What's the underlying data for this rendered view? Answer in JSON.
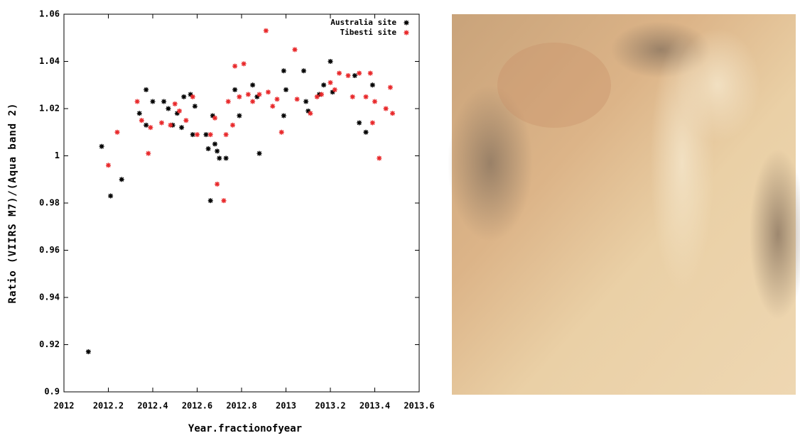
{
  "chart_data": {
    "type": "scatter",
    "xlabel": "Year.fractionofyear",
    "ylabel": "Ratio (VIIRS M7)/(Aqua band 2)",
    "xlim": [
      2012,
      2013.6
    ],
    "xticks": [
      2012,
      2012.2,
      2012.4,
      2012.6,
      2012.8,
      2013,
      2013.2,
      2013.4,
      2013.6
    ],
    "ylim": [
      0.9,
      1.06
    ],
    "yticks": [
      0.9,
      0.92,
      0.94,
      0.96,
      0.98,
      1,
      1.02,
      1.04,
      1.06
    ],
    "grid": false,
    "legend": "upper right",
    "series": [
      {
        "name": "Australia site",
        "color": "#000000",
        "x": [
          2012.11,
          2012.17,
          2012.21,
          2012.26,
          2012.34,
          2012.37,
          2012.37,
          2012.4,
          2012.45,
          2012.47,
          2012.49,
          2012.51,
          2012.53,
          2012.54,
          2012.57,
          2012.59,
          2012.58,
          2012.64,
          2012.65,
          2012.66,
          2012.67,
          2012.68,
          2012.69,
          2012.7,
          2012.73,
          2012.77,
          2012.79,
          2012.85,
          2012.87,
          2012.88,
          2012.99,
          2013.0,
          2012.99,
          2013.08,
          2013.09,
          2013.1,
          2013.2,
          2013.21,
          2013.17,
          2013.31,
          2013.33,
          2013.36,
          2013.39,
          2013.15
        ],
        "values": [
          0.917,
          1.004,
          0.983,
          0.99,
          1.018,
          1.028,
          1.013,
          1.023,
          1.023,
          1.02,
          1.013,
          1.018,
          1.012,
          1.025,
          1.026,
          1.021,
          1.009,
          1.009,
          1.003,
          0.981,
          1.017,
          1.005,
          1.002,
          0.999,
          0.999,
          1.028,
          1.017,
          1.03,
          1.025,
          1.001,
          1.036,
          1.028,
          1.017,
          1.036,
          1.023,
          1.019,
          1.04,
          1.027,
          1.03,
          1.034,
          1.014,
          1.01,
          1.03,
          1.026
        ]
      },
      {
        "name": "Tibesti site",
        "color": "#e8282a",
        "x": [
          2012.2,
          2012.24,
          2012.33,
          2012.35,
          2012.38,
          2012.39,
          2012.44,
          2012.48,
          2012.5,
          2012.52,
          2012.55,
          2012.58,
          2012.6,
          2012.66,
          2012.68,
          2012.69,
          2012.72,
          2012.73,
          2012.74,
          2012.76,
          2012.77,
          2012.79,
          2012.81,
          2012.83,
          2012.85,
          2012.88,
          2012.91,
          2012.92,
          2012.94,
          2012.96,
          2012.98,
          2013.04,
          2013.05,
          2013.11,
          2013.14,
          2013.16,
          2013.2,
          2013.22,
          2013.24,
          2013.28,
          2013.3,
          2013.33,
          2013.36,
          2013.38,
          2013.39,
          2013.4,
          2013.42,
          2013.45,
          2013.47,
          2013.48
        ],
        "values": [
          0.996,
          1.01,
          1.023,
          1.015,
          1.001,
          1.012,
          1.014,
          1.013,
          1.022,
          1.019,
          1.015,
          1.025,
          1.009,
          1.009,
          1.016,
          0.988,
          0.981,
          1.009,
          1.023,
          1.013,
          1.038,
          1.025,
          1.039,
          1.026,
          1.023,
          1.026,
          1.053,
          1.027,
          1.021,
          1.024,
          1.01,
          1.045,
          1.024,
          1.018,
          1.025,
          1.026,
          1.031,
          1.028,
          1.035,
          1.034,
          1.025,
          1.035,
          1.025,
          1.035,
          1.014,
          1.023,
          0.999,
          1.02,
          1.029,
          1.018
        ]
      }
    ]
  }
}
